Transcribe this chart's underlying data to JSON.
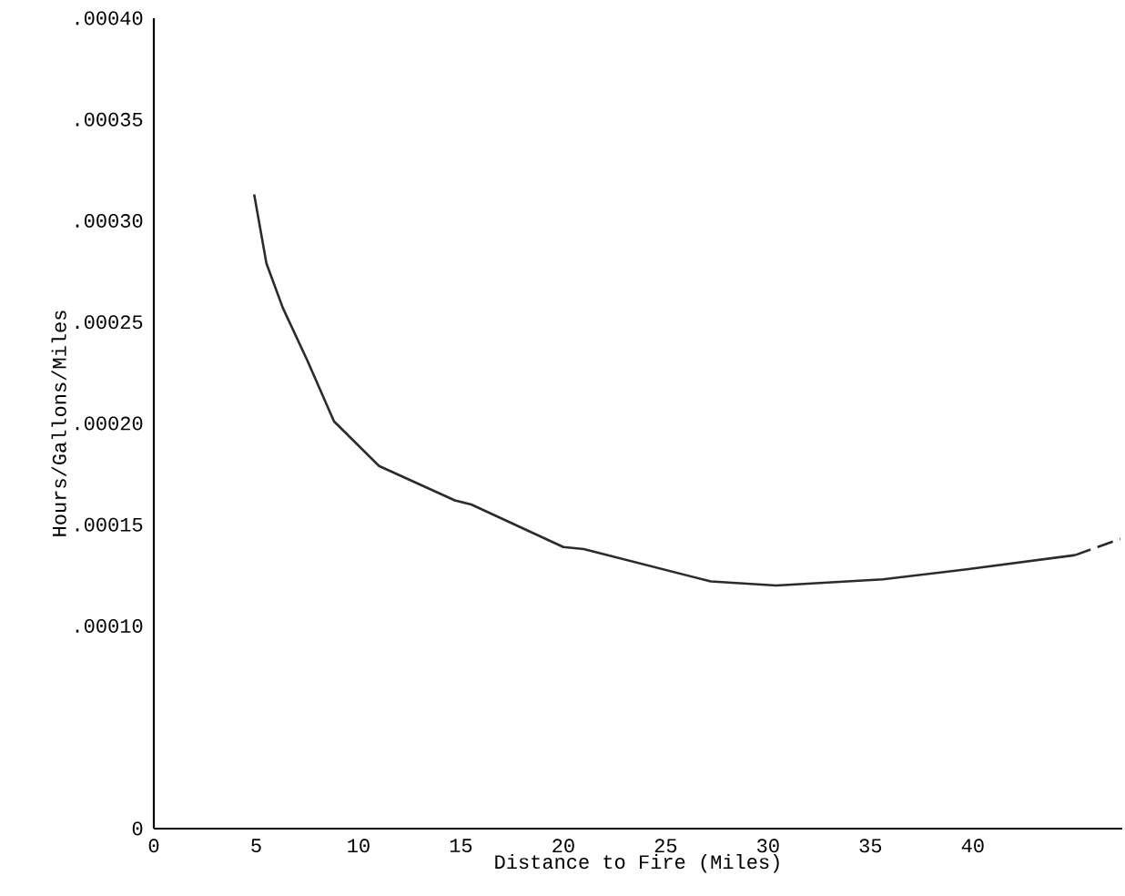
{
  "chart_data": {
    "type": "line",
    "xlabel": "Distance to Fire (Miles)",
    "ylabel": "Hours/Gallons/Miles",
    "xlim": [
      0,
      47.3
    ],
    "ylim": [
      0,
      0.0004
    ],
    "xticks": [
      0,
      5,
      10,
      15,
      20,
      25,
      30,
      35,
      40
    ],
    "yticks": [
      {
        "value": 0,
        "label": "0"
      },
      {
        "value": 0.0001,
        "label": ".00010"
      },
      {
        "value": 0.00015,
        "label": ".00015"
      },
      {
        "value": 0.0002,
        "label": ".00020"
      },
      {
        "value": 0.00025,
        "label": ".00025"
      },
      {
        "value": 0.0003,
        "label": ".00030"
      },
      {
        "value": 0.00035,
        "label": ".00035"
      },
      {
        "value": 0.0004,
        "label": ".00040"
      }
    ],
    "grid": false,
    "marker": "none",
    "series": [
      {
        "color": "#2b2b2b",
        "line_style": "solid",
        "x": [
          4.9,
          5.5,
          6.3,
          7.5,
          8.8,
          11.0,
          14.7,
          15.5,
          20.0,
          21.0,
          27.2,
          30.4,
          35.6,
          39.7,
          45.0
        ],
        "values": [
          0.000313,
          0.000279,
          0.000257,
          0.000231,
          0.000201,
          0.000179,
          0.000162,
          0.00016,
          0.000139,
          0.000138,
          0.000122,
          0.00012,
          0.000123,
          0.000128,
          0.000135
        ]
      },
      {
        "color": "#2b2b2b",
        "line_style": "dashed",
        "x": [
          45.0,
          46.1,
          47.2
        ],
        "values": [
          0.000135,
          0.000139,
          0.000143
        ]
      }
    ]
  }
}
